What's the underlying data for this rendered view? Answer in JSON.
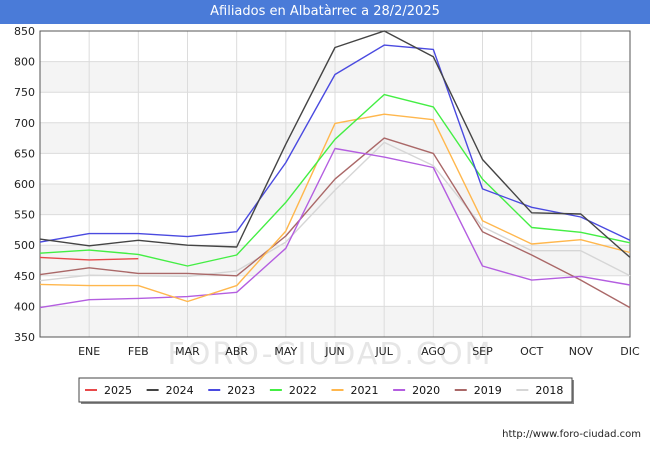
{
  "title": "Afiliados en Albatàrrec a 28/2/2025",
  "footer": "http://www.foro-ciudad.com",
  "watermark": "FORO-CIUDAD.COM",
  "chart_data": {
    "type": "line",
    "title": "Afiliados en Albatàrrec a 28/2/2025",
    "xlabel": "",
    "ylabel": "",
    "categories": [
      "",
      "ENE",
      "FEB",
      "MAR",
      "ABR",
      "MAY",
      "JUN",
      "JUL",
      "AGO",
      "SEP",
      "OCT",
      "NOV",
      "DIC"
    ],
    "ylim": [
      350,
      850
    ],
    "yticks": [
      350,
      400,
      450,
      500,
      550,
      600,
      650,
      700,
      750,
      800,
      850
    ],
    "grid": true,
    "legend_position": "bottom",
    "series": [
      {
        "name": "2025",
        "color": "#e8494a",
        "values": [
          480,
          476,
          478,
          null,
          null,
          null,
          null,
          null,
          null,
          null,
          null,
          null,
          null
        ]
      },
      {
        "name": "2024",
        "color": "#444444",
        "values": [
          510,
          499,
          508,
          500,
          497,
          665,
          823,
          850,
          808,
          640,
          553,
          551,
          480
        ]
      },
      {
        "name": "2023",
        "color": "#4a4ae0",
        "values": [
          505,
          519,
          519,
          514,
          522,
          635,
          779,
          827,
          820,
          592,
          562,
          546,
          508
        ]
      },
      {
        "name": "2022",
        "color": "#44ee44",
        "values": [
          487,
          492,
          485,
          466,
          484,
          570,
          673,
          746,
          726,
          608,
          529,
          521,
          504
        ]
      },
      {
        "name": "2021",
        "color": "#ffb74d",
        "values": [
          436,
          434,
          434,
          408,
          434,
          523,
          699,
          714,
          705,
          540,
          502,
          509,
          488
        ]
      },
      {
        "name": "2020",
        "color": "#b45ee0",
        "values": [
          398,
          411,
          413,
          416,
          423,
          495,
          658,
          644,
          627,
          466,
          443,
          449,
          435
        ]
      },
      {
        "name": "2019",
        "color": "#aa6868",
        "values": [
          452,
          463,
          454,
          454,
          450,
          515,
          608,
          675,
          650,
          522,
          484,
          443,
          398
        ]
      },
      {
        "name": "2018",
        "color": "#d6d6d6",
        "values": [
          442,
          451,
          450,
          449,
          458,
          505,
          590,
          668,
          630,
          530,
          491,
          491,
          450
        ]
      }
    ]
  }
}
